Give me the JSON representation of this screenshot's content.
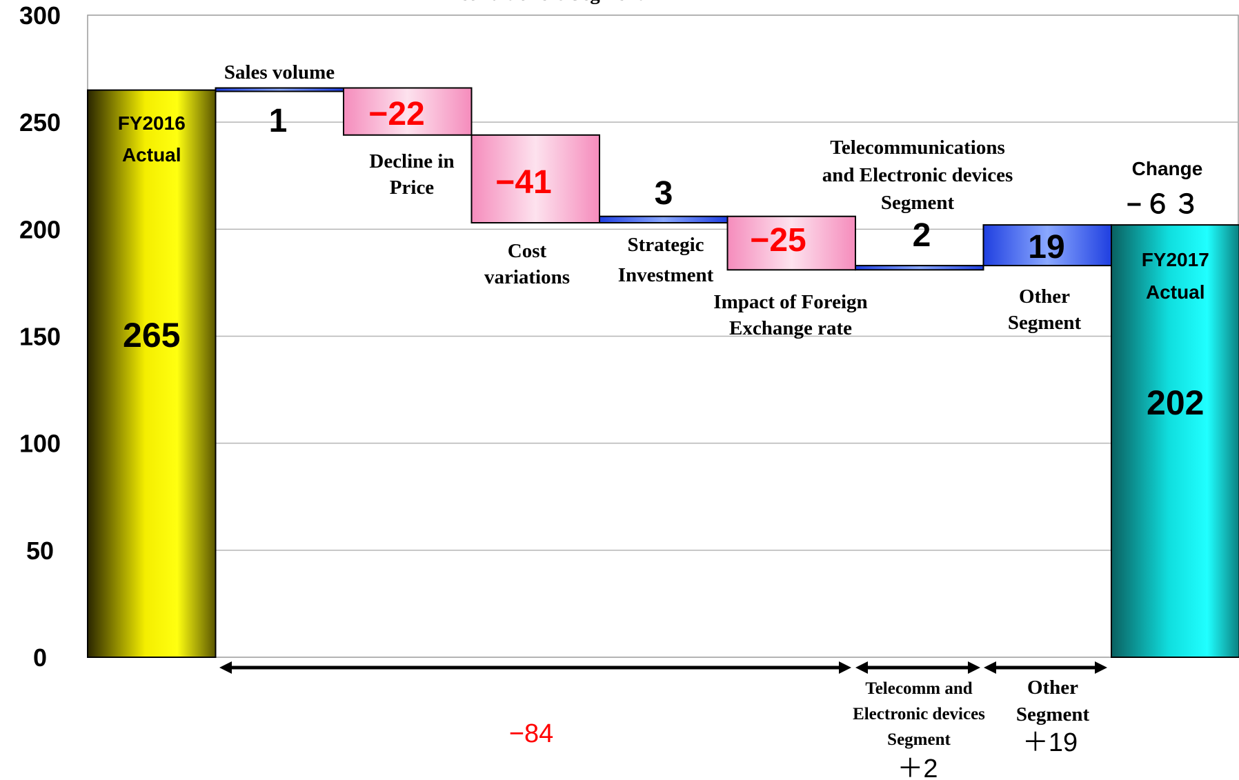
{
  "chart_data": {
    "type": "waterfall",
    "ylim": [
      0,
      300
    ],
    "yticks": [
      "0",
      "50",
      "100",
      "150",
      "200",
      "250",
      "300"
    ],
    "grid": true,
    "start": {
      "label_lines": [
        "FY2016",
        "Actual"
      ],
      "value": 265,
      "value_label": "265",
      "color": "#f5f000"
    },
    "end": {
      "label_lines": [
        "FY2017",
        "Actual"
      ],
      "value": 202,
      "value_label": "202",
      "color": "#12e6e6"
    },
    "steps": [
      {
        "label_lines": [
          "Sales volume"
        ],
        "value": 1,
        "value_label": "1",
        "kind": "increase"
      },
      {
        "label_lines": [
          "Decline in",
          "Price"
        ],
        "value": -22,
        "value_label": "−22",
        "kind": "decrease"
      },
      {
        "label_lines": [
          "Cost",
          "variations"
        ],
        "value": -41,
        "value_label": "−41",
        "kind": "decrease"
      },
      {
        "label_lines": [
          "Strategic",
          "Investment"
        ],
        "value": 3,
        "value_label": "3",
        "kind": "increase"
      },
      {
        "label_lines": [
          "Impact of Foreign",
          "Exchange rate"
        ],
        "value": -25,
        "value_label": "−25",
        "kind": "decrease"
      },
      {
        "label_lines": [
          "Telecommunications",
          "and Electronic devices",
          "Segment"
        ],
        "value": 2,
        "value_label": "2",
        "kind": "increase"
      },
      {
        "label_lines": [
          "Other",
          "Segment"
        ],
        "value": 19,
        "value_label": "19",
        "kind": "increase"
      }
    ],
    "change": {
      "label": "Change",
      "value": -63,
      "value_label": "−６３"
    },
    "segments": [
      {
        "label_lines": [
          "Air conditioners Segment"
        ],
        "total": -84,
        "total_label": "−84"
      },
      {
        "label_lines": [
          "Telecomm and",
          "Electronic devices",
          "Segment"
        ],
        "total": 2,
        "total_label": "＋2"
      },
      {
        "label_lines": [
          "Other",
          "Segment"
        ],
        "total": 19,
        "total_label": "＋19"
      }
    ],
    "colors": {
      "increase": "#3355ee",
      "decrease": "#f8a0c8",
      "negative_text": "#ff0000",
      "positive_text": "#000000"
    }
  }
}
